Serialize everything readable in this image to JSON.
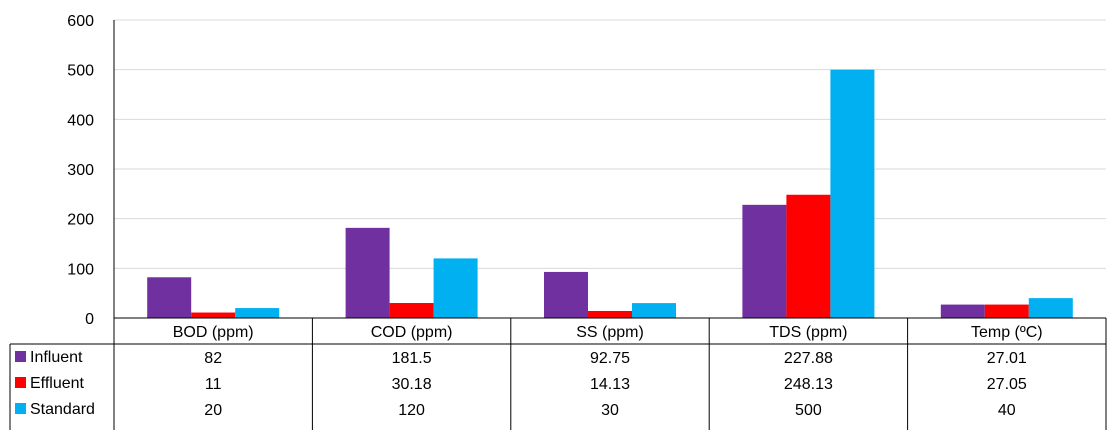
{
  "chart_data": {
    "type": "bar",
    "categories": [
      "BOD (ppm)",
      "COD (ppm)",
      "SS (ppm)",
      "TDS (ppm)",
      "Temp (ºC)"
    ],
    "ylim": [
      0,
      600
    ],
    "yticks": [
      0,
      100,
      200,
      300,
      400,
      500,
      600
    ],
    "grid": true,
    "legend": "data-table",
    "series": [
      {
        "name": "Influent",
        "color": "#7030A0",
        "values": [
          82,
          181.5,
          92.75,
          227.88,
          27.01
        ],
        "labels": [
          "82",
          "181.5",
          "92.75",
          "227.88",
          "27.01"
        ]
      },
      {
        "name": "Effluent",
        "color": "#FF0000",
        "values": [
          11,
          30.18,
          14.13,
          248.13,
          27.05
        ],
        "labels": [
          "11",
          "30.18",
          "14.13",
          "248.13",
          "27.05"
        ]
      },
      {
        "name": "Standard",
        "color": "#00B0F0",
        "values": [
          20,
          120,
          30,
          500,
          40
        ],
        "labels": [
          "20",
          "120",
          "30",
          "500",
          "40"
        ]
      }
    ]
  }
}
